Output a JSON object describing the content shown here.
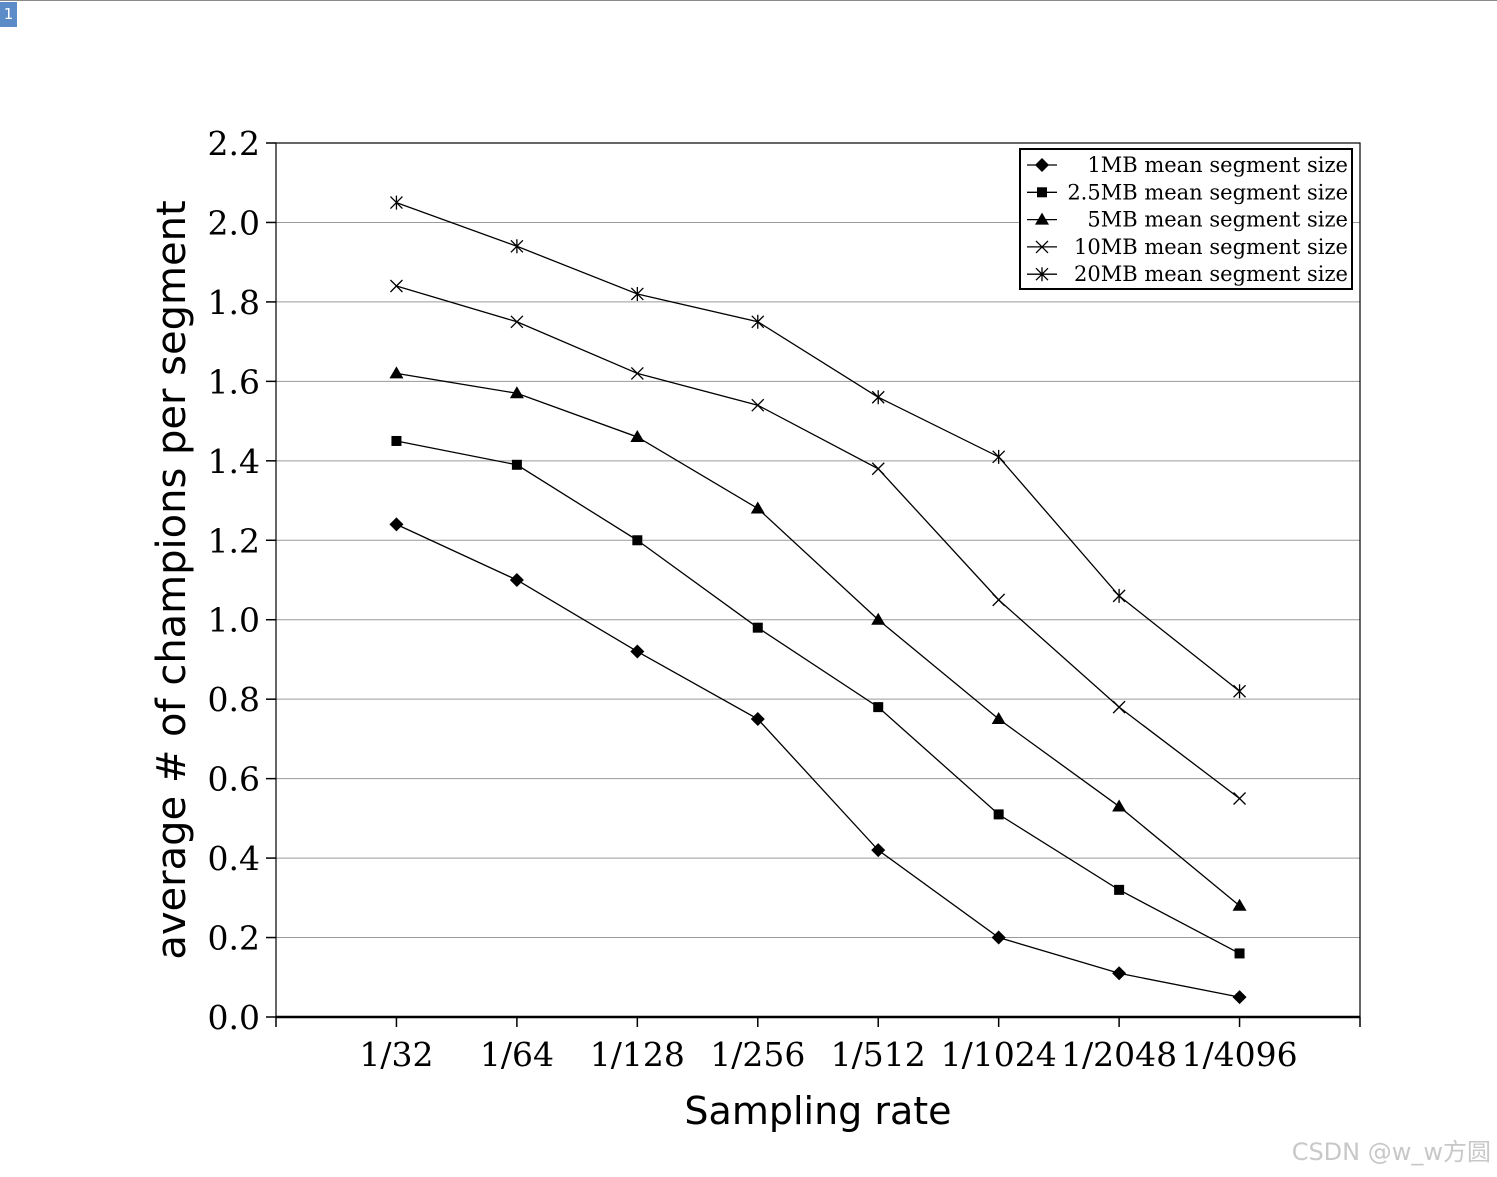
{
  "page_badge": "1",
  "watermark": "CSDN @w_w方圆",
  "chart_data": {
    "type": "line",
    "title": "",
    "xlabel": "Sampling rate",
    "ylabel": "average # of champions per segment",
    "categories": [
      "1/32",
      "1/64",
      "1/128",
      "1/256",
      "1/512",
      "1/1024",
      "1/2048",
      "1/4096"
    ],
    "ylim": [
      0,
      2.2
    ],
    "yticks": [
      "0.0",
      "0.2",
      "0.4",
      "0.6",
      "0.8",
      "1.0",
      "1.2",
      "1.4",
      "1.6",
      "1.8",
      "2.0",
      "2.2"
    ],
    "grid": "horizontal",
    "legend_position": "top-right",
    "series": [
      {
        "name": "1MB mean segment size",
        "marker": "diamond",
        "values": [
          1.24,
          1.1,
          0.92,
          0.75,
          0.42,
          0.2,
          0.11,
          0.05
        ]
      },
      {
        "name": "2.5MB mean segment size",
        "marker": "square",
        "values": [
          1.45,
          1.39,
          1.2,
          0.98,
          0.78,
          0.51,
          0.32,
          0.16
        ]
      },
      {
        "name": "5MB mean segment size",
        "marker": "triangle",
        "values": [
          1.62,
          1.57,
          1.46,
          1.28,
          1.0,
          0.75,
          0.53,
          0.28
        ]
      },
      {
        "name": "10MB mean segment size",
        "marker": "x",
        "values": [
          1.84,
          1.75,
          1.62,
          1.54,
          1.38,
          1.05,
          0.78,
          0.55
        ]
      },
      {
        "name": "20MB mean segment size",
        "marker": "asterisk",
        "values": [
          2.05,
          1.94,
          1.82,
          1.75,
          1.56,
          1.41,
          1.06,
          0.82
        ]
      }
    ]
  }
}
